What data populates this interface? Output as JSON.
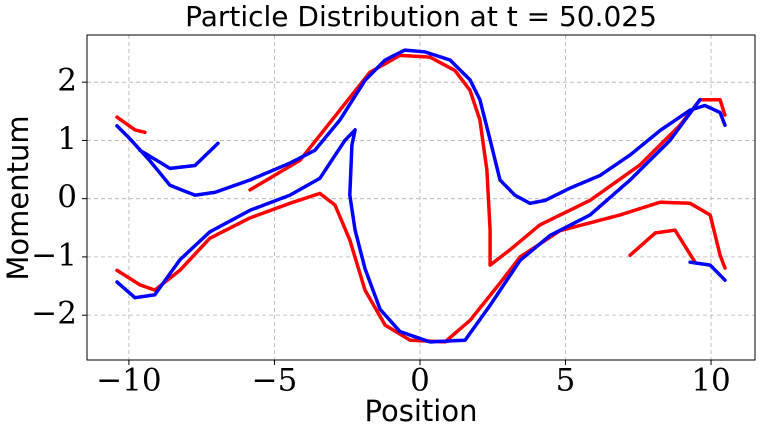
{
  "chart_data": {
    "type": "scatter",
    "title": "Particle Distribution at t = 50.025",
    "xlabel": "Position",
    "ylabel": "Momentum",
    "grid": true,
    "xlim": [
      -11.44,
      11.51
    ],
    "ylim": [
      -2.77,
      2.81
    ],
    "xticks": [
      {
        "value": -10,
        "label": "−10"
      },
      {
        "value": -5,
        "label": "−5"
      },
      0,
      5,
      10
    ],
    "yticks": [
      {
        "value": -2,
        "label": "−2"
      },
      {
        "value": -1,
        "label": "−1"
      },
      0,
      1,
      2
    ],
    "series": [
      {
        "color": "#ff0000",
        "x": [
          -10.41,
          -9.79,
          -9.45,
          null,
          -5.84,
          -4.12,
          -2.75,
          -1.72,
          -0.69,
          0.34,
          1.2,
          1.72,
          2.06,
          2.3,
          2.41,
          2.41,
          3.09,
          4.12,
          5.84,
          7.56,
          8.93,
          9.62,
          10.31,
          10.48,
          null,
          -10.41,
          -9.62,
          -9.11,
          -8.25,
          -7.22,
          -5.84,
          -4.47,
          -3.44,
          -2.92,
          -2.41,
          -1.89,
          -1.2,
          -0.34,
          0.86,
          1.72,
          2.75,
          3.44,
          4.81,
          6.87,
          8.25,
          9.28,
          9.97,
          10.31,
          10.48,
          null,
          7.22,
          8.08,
          8.76,
          9.45
        ],
        "y": [
          1.4,
          1.18,
          1.14,
          null,
          0.15,
          0.66,
          1.52,
          2.17,
          2.46,
          2.43,
          2.2,
          1.86,
          1.35,
          0.49,
          -0.54,
          -1.14,
          -0.88,
          -0.45,
          -0.03,
          0.58,
          1.26,
          1.7,
          1.7,
          1.43,
          null,
          -1.23,
          -1.48,
          -1.57,
          -1.23,
          -0.68,
          -0.33,
          -0.08,
          0.09,
          -0.11,
          -0.71,
          -1.57,
          -2.17,
          -2.43,
          -2.46,
          -2.09,
          -1.45,
          -1.0,
          -0.55,
          -0.28,
          -0.06,
          -0.08,
          -0.28,
          -0.97,
          -1.19,
          null,
          -0.97,
          -0.59,
          -0.54,
          -1.09
        ]
      },
      {
        "color": "#0000ff",
        "x": [
          -10.41,
          -9.97,
          -9.28,
          -8.59,
          -7.73,
          -7.04,
          -5.84,
          -4.47,
          -3.61,
          -2.75,
          -1.89,
          -1.2,
          -0.52,
          0.17,
          1.03,
          1.72,
          2.06,
          2.41,
          2.75,
          3.26,
          3.78,
          4.3,
          5.15,
          6.19,
          7.22,
          8.25,
          9.28,
          9.79,
          10.31,
          10.48,
          null,
          -9.62,
          -8.59,
          -7.73,
          -6.94,
          null,
          -10.41,
          -9.79,
          -9.11,
          -8.25,
          -7.22,
          -5.84,
          -4.47,
          -3.44,
          -2.58,
          -2.23,
          -2.34,
          -2.41,
          -2.23,
          -1.89,
          -1.37,
          -0.69,
          0.34,
          1.55,
          2.41,
          3.44,
          4.47,
          5.84,
          7.22,
          8.59,
          9.62,
          null,
          9.28,
          9.97,
          10.48
        ],
        "y": [
          1.25,
          1.03,
          0.65,
          0.23,
          0.06,
          0.11,
          0.32,
          0.61,
          0.83,
          1.35,
          2.03,
          2.38,
          2.55,
          2.52,
          2.38,
          2.04,
          1.7,
          1.01,
          0.32,
          0.06,
          -0.08,
          -0.03,
          0.18,
          0.4,
          0.75,
          1.17,
          1.52,
          1.6,
          1.48,
          1.26,
          null,
          0.83,
          0.52,
          0.57,
          0.95,
          null,
          -1.43,
          -1.7,
          -1.65,
          -1.05,
          -0.57,
          -0.2,
          0.06,
          0.35,
          1.0,
          1.18,
          0.92,
          0.06,
          -0.54,
          -1.2,
          -1.9,
          -2.28,
          -2.46,
          -2.43,
          -1.83,
          -1.06,
          -0.63,
          -0.28,
          0.32,
          1.0,
          1.7,
          null,
          -1.09,
          -1.14,
          -1.4
        ]
      }
    ]
  }
}
